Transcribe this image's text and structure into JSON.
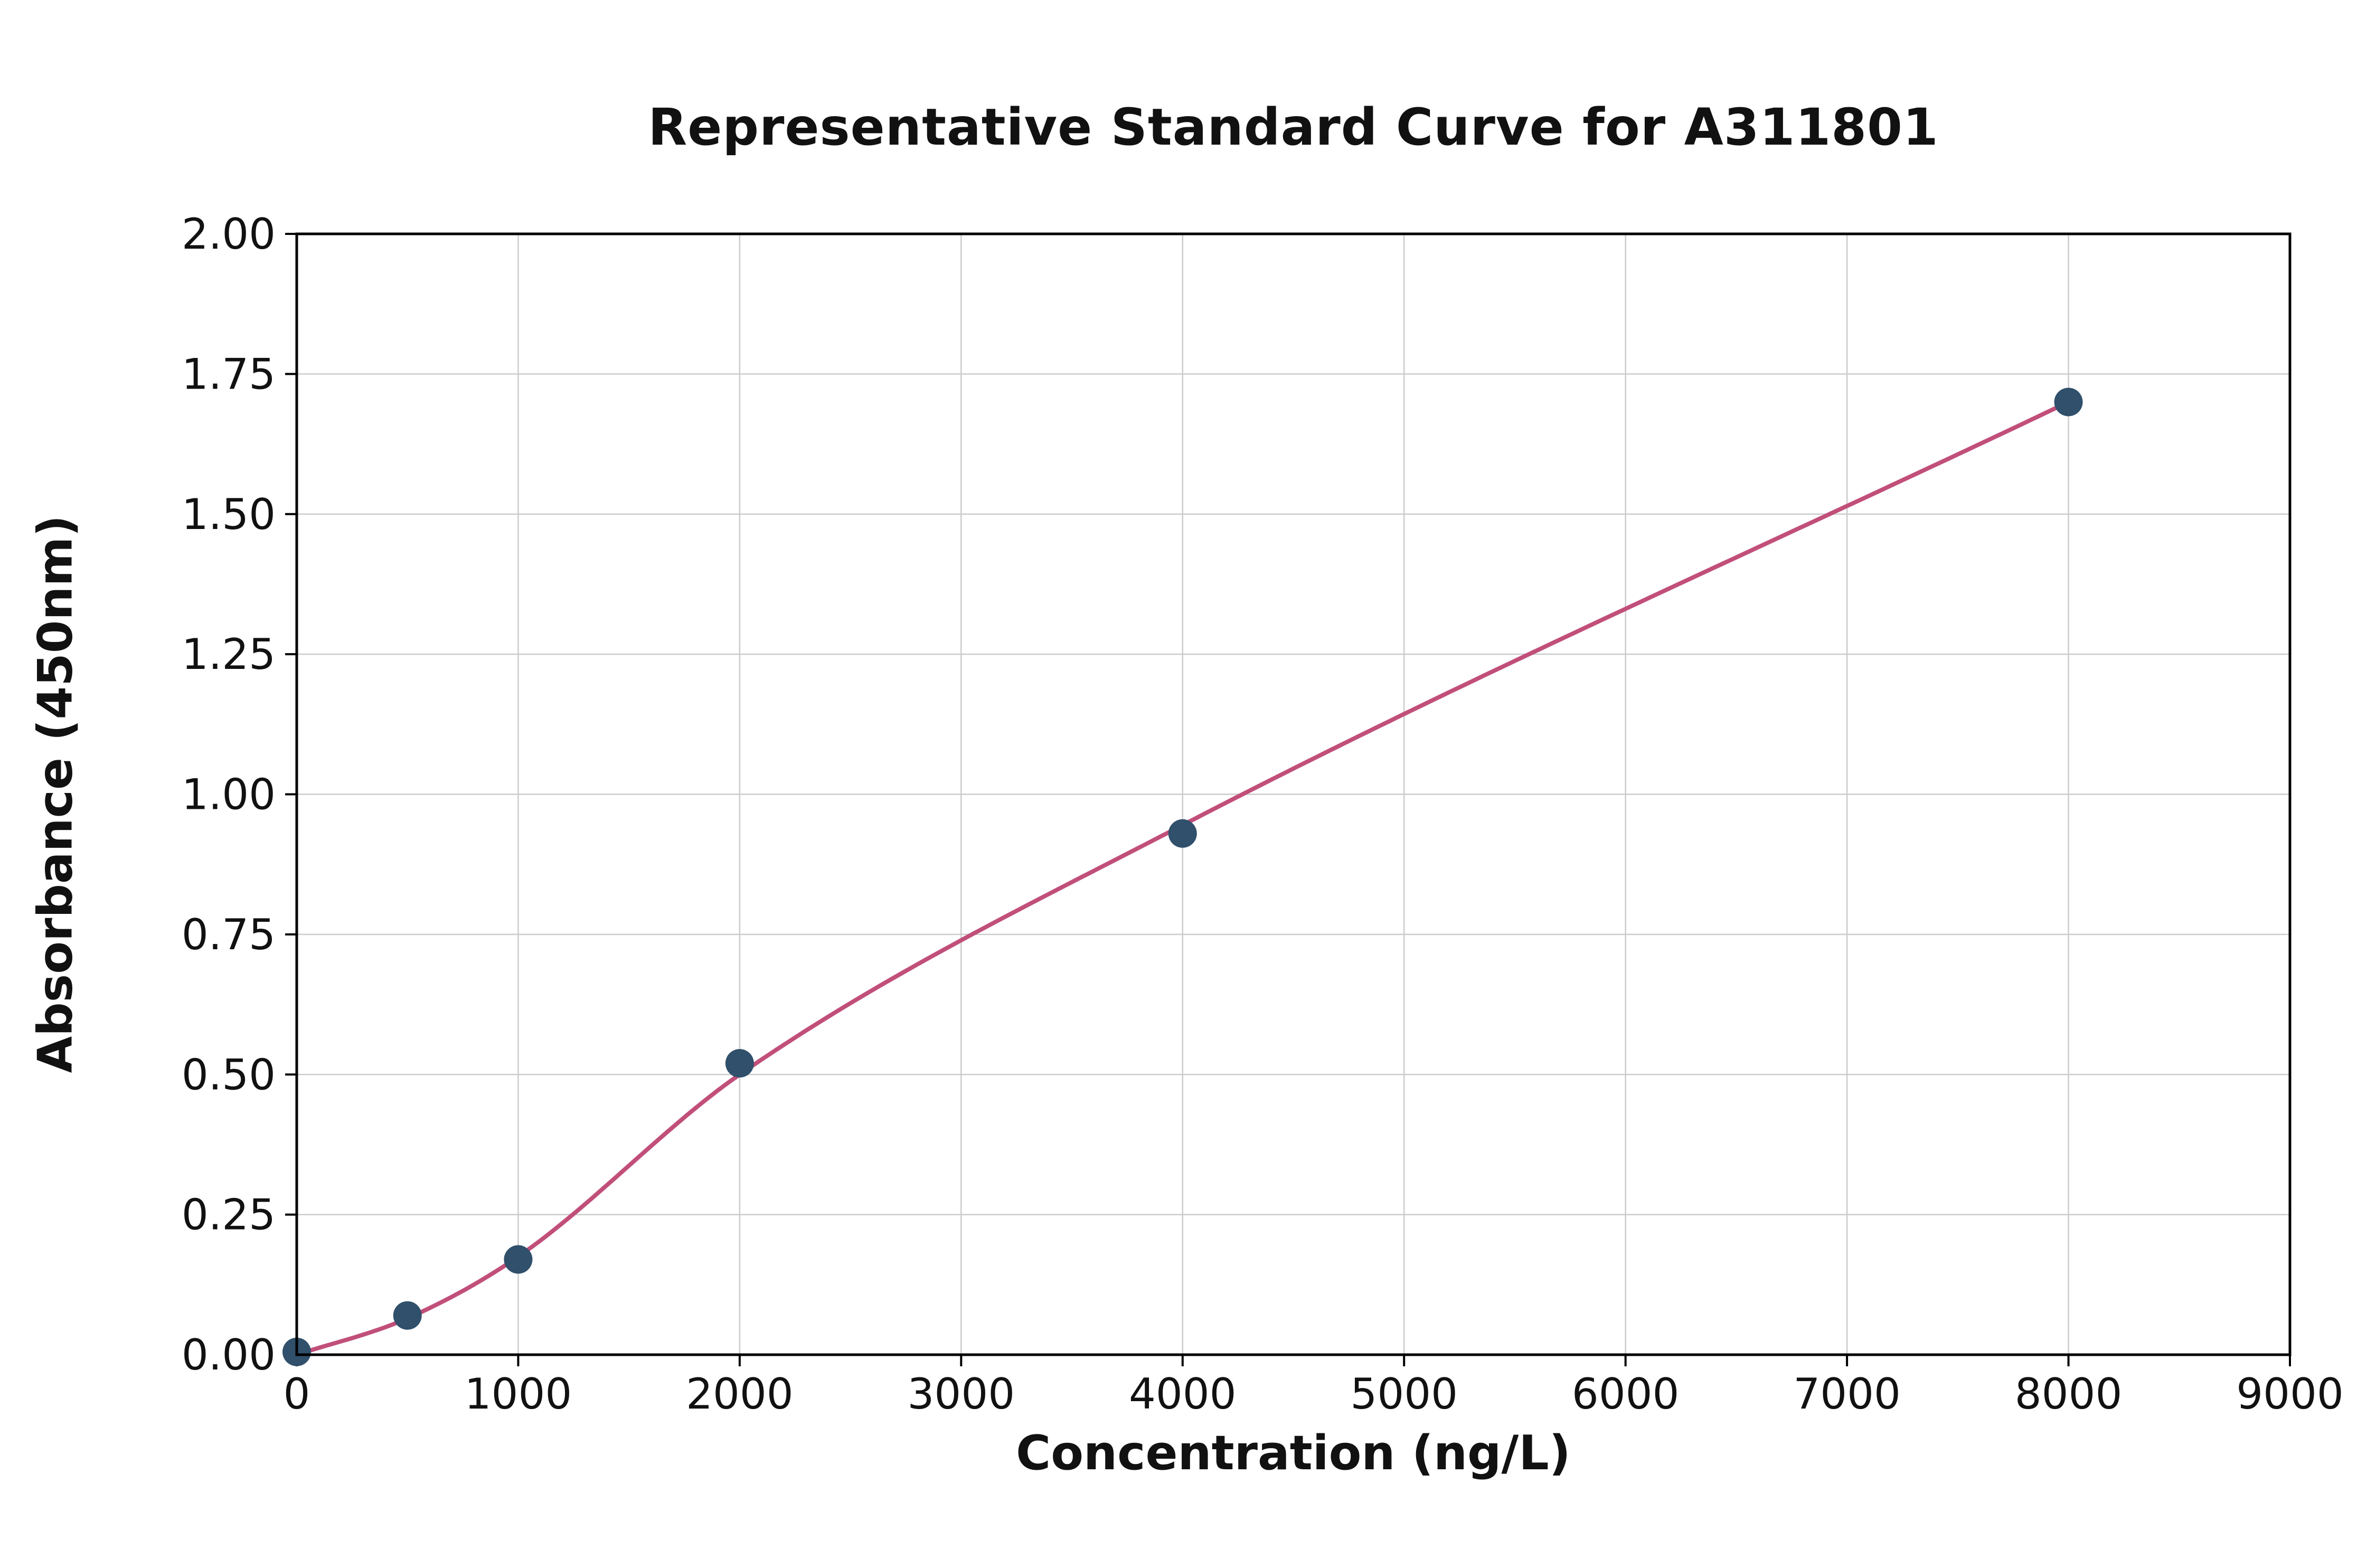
{
  "chart_data": {
    "type": "scatter",
    "title": "Representative Standard Curve for A311801",
    "xlabel": "Concentration (ng/L)",
    "ylabel": "Absorbance (450nm)",
    "xlim": [
      0,
      9000
    ],
    "ylim": [
      0.0,
      2.0
    ],
    "grid": true,
    "legend_position": "none",
    "x_ticks": [
      0,
      1000,
      2000,
      3000,
      4000,
      5000,
      6000,
      7000,
      8000,
      9000
    ],
    "x_tick_labels": [
      "0",
      "1000",
      "2000",
      "3000",
      "4000",
      "5000",
      "6000",
      "7000",
      "8000",
      "9000"
    ],
    "y_ticks": [
      0.0,
      0.25,
      0.5,
      0.75,
      1.0,
      1.25,
      1.5,
      1.75,
      2.0
    ],
    "y_tick_labels": [
      "0.00",
      "0.25",
      "0.50",
      "0.75",
      "1.00",
      "1.25",
      "1.50",
      "1.75",
      "2.00"
    ],
    "series": [
      {
        "name": "standard-points",
        "type": "scatter",
        "x": [
          0,
          500,
          1000,
          2000,
          4000,
          8000
        ],
        "y": [
          0.005,
          0.07,
          0.17,
          0.52,
          0.93,
          1.7
        ],
        "color": "#30506b"
      },
      {
        "name": "fit-curve",
        "type": "line",
        "x": [
          0,
          500,
          1000,
          2000,
          4000,
          8000
        ],
        "y": [
          0.0,
          0.065,
          0.175,
          0.5,
          0.945,
          1.7
        ],
        "color": "#c14f7a"
      }
    ],
    "colors": {
      "point": "#30506b",
      "line": "#c14f7a",
      "grid": "#cccccc",
      "axis": "#000000",
      "text": "#111111",
      "background": "#ffffff"
    }
  }
}
